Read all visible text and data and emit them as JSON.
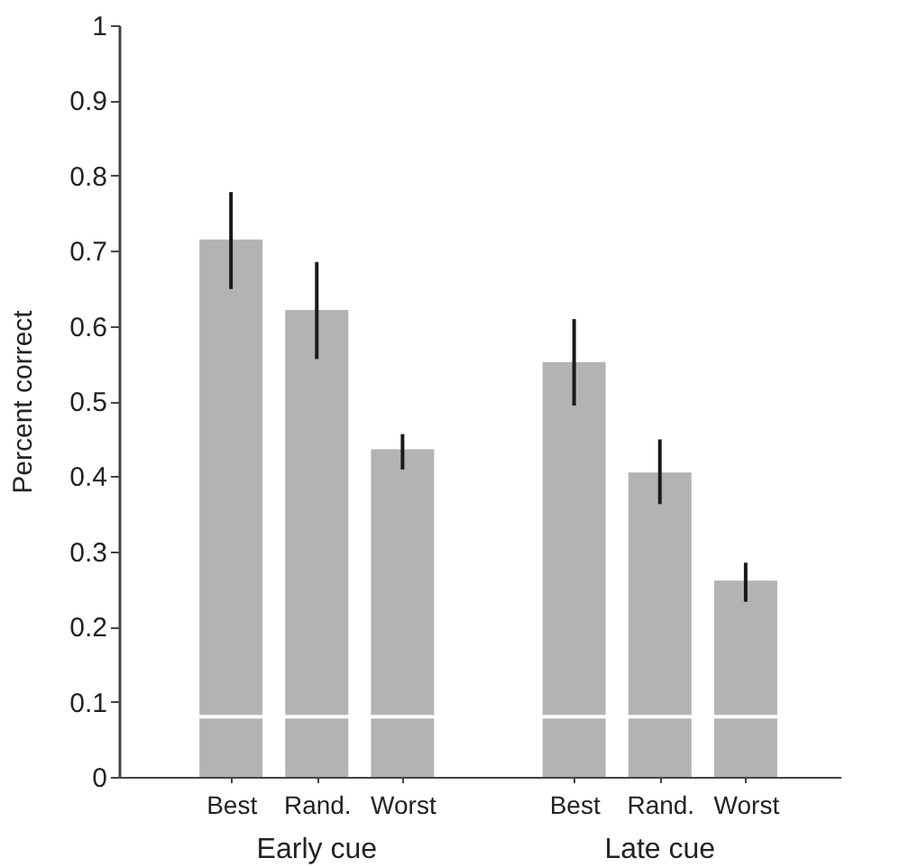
{
  "chart_data": {
    "type": "bar",
    "ylabel": "Percent correct",
    "categories": [
      "Best",
      "Rand.",
      "Worst",
      null,
      "Best",
      "Rand.",
      "Worst"
    ],
    "values": [
      0.715,
      0.621,
      0.436,
      null,
      0.552,
      0.405,
      0.261
    ],
    "errors": [
      [
        0.649,
        0.778
      ],
      [
        0.556,
        0.685
      ],
      [
        0.409,
        0.456
      ],
      null,
      [
        0.494,
        0.609
      ],
      [
        0.363,
        0.449
      ],
      [
        0.233,
        0.285
      ]
    ],
    "color": "#b3b3b3",
    "ylim": [
      0,
      1
    ],
    "yticks": [
      0,
      0.1,
      0.2,
      0.3,
      0.4,
      0.5,
      0.6,
      0.7,
      0.8,
      0.9,
      1
    ],
    "ref_lines": [
      {
        "axis": "y",
        "value": 0.08,
        "label": null,
        "color": "#ffffff"
      }
    ],
    "annotations": [
      "Early cue",
      "Late cue"
    ],
    "grid": false
  }
}
